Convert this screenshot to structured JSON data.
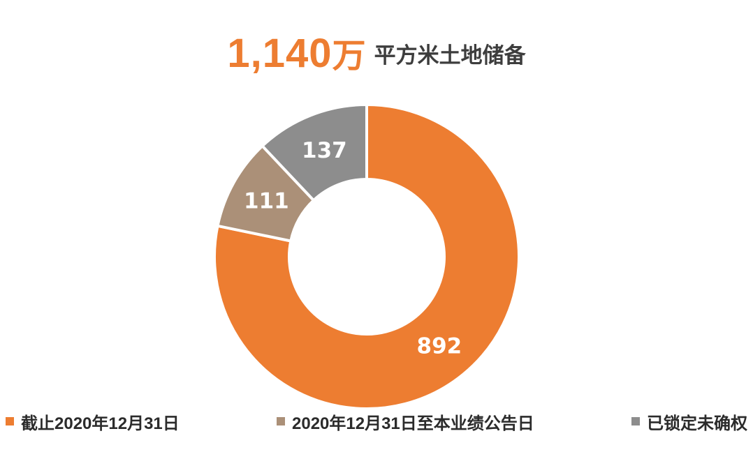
{
  "header": {
    "value": "1,140",
    "unit": "万",
    "suffix": "平方米土地储备"
  },
  "chart_data": {
    "type": "pie",
    "donut": true,
    "title": "1,140万 平方米土地储备",
    "total": 1140,
    "start_angle_deg": 0,
    "direction": "clockwise",
    "inner_radius_ratio": 0.51,
    "legend_position": "bottom",
    "slices": [
      {
        "label": "截止2020年12月31日",
        "value": 892,
        "color": "#ED7D31"
      },
      {
        "label": "2020年12月31日至本业绩公告日",
        "value": 111,
        "color": "#AB9078"
      },
      {
        "label": "已锁定未确权",
        "value": 137,
        "color": "#8D8D8D"
      }
    ]
  },
  "colors": {
    "accent_orange": "#ED7D31",
    "tan": "#AB9078",
    "gray": "#8D8D8D",
    "title_dark": "#3d3d3d",
    "slice_label": "#ffffff",
    "background": "#ffffff"
  }
}
